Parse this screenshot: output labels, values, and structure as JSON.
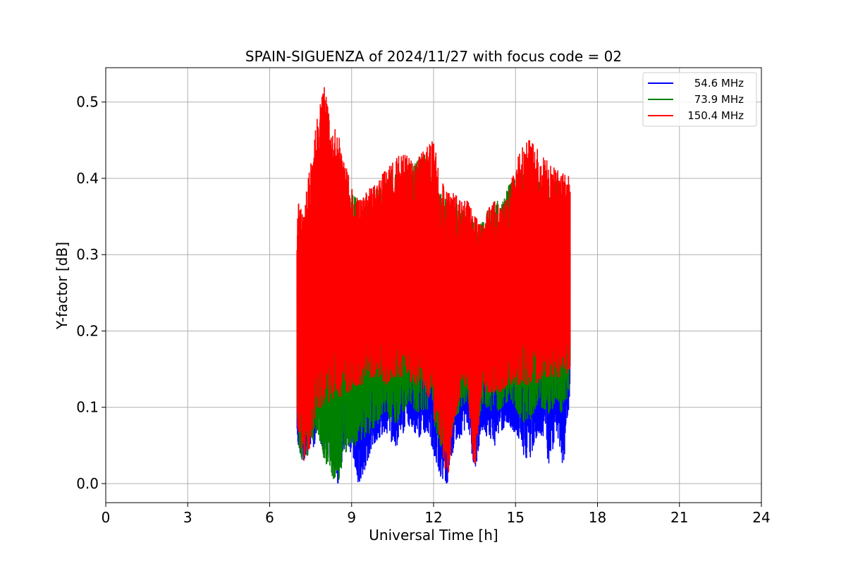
{
  "chart_data": {
    "type": "line",
    "title": "SPAIN-SIGUENZA of 2024/11/27 with focus code = 02",
    "xlabel": "Universal Time [h]",
    "ylabel": "Y-factor [dB]",
    "xlim": [
      0,
      24
    ],
    "ylim": [
      -0.025,
      0.545
    ],
    "xticks": [
      0,
      3,
      6,
      9,
      12,
      15,
      18,
      21,
      24
    ],
    "xtick_labels": [
      "0",
      "3",
      "6",
      "9",
      "12",
      "15",
      "18",
      "21",
      "24"
    ],
    "yticks": [
      0.0,
      0.1,
      0.2,
      0.3,
      0.4,
      0.5
    ],
    "ytick_labels": [
      "0.0",
      "0.1",
      "0.2",
      "0.3",
      "0.4",
      "0.5"
    ],
    "grid": true,
    "legend_position": "top-right",
    "series": [
      {
        "name": "54.6 MHz",
        "color": "#0000ff",
        "x": [
          7.0,
          7.25,
          7.5,
          7.75,
          8.0,
          8.25,
          8.5,
          8.75,
          9.0,
          9.25,
          9.5,
          9.75,
          10.0,
          10.25,
          10.5,
          10.75,
          11.0,
          11.25,
          11.5,
          11.75,
          12.0,
          12.25,
          12.5,
          12.75,
          13.0,
          13.25,
          13.5,
          13.75,
          14.0,
          14.25,
          14.5,
          14.75,
          15.0,
          15.25,
          15.5,
          15.75,
          16.0,
          16.25,
          16.5,
          16.75,
          17.0
        ],
        "lower": [
          0.05,
          0.03,
          0.04,
          0.06,
          0.04,
          0.03,
          0.0,
          0.05,
          0.04,
          0.0,
          0.02,
          0.05,
          0.06,
          0.07,
          0.05,
          0.05,
          0.08,
          0.07,
          0.06,
          0.07,
          0.04,
          0.01,
          0.0,
          0.05,
          0.06,
          0.08,
          0.01,
          0.07,
          0.06,
          0.05,
          0.07,
          0.08,
          0.06,
          0.04,
          0.03,
          0.06,
          0.06,
          0.02,
          0.07,
          0.02,
          0.12
        ],
        "upper": [
          0.28,
          0.3,
          0.31,
          0.3,
          0.33,
          0.32,
          0.3,
          0.3,
          0.31,
          0.32,
          0.3,
          0.31,
          0.32,
          0.32,
          0.33,
          0.33,
          0.33,
          0.32,
          0.32,
          0.33,
          0.31,
          0.3,
          0.3,
          0.31,
          0.3,
          0.3,
          0.3,
          0.29,
          0.28,
          0.3,
          0.3,
          0.31,
          0.32,
          0.32,
          0.33,
          0.33,
          0.32,
          0.32,
          0.32,
          0.32,
          0.3
        ]
      },
      {
        "name": "73.9 MHz",
        "color": "#008000",
        "x": [
          7.0,
          7.25,
          7.5,
          7.75,
          8.0,
          8.25,
          8.5,
          8.75,
          9.0,
          9.25,
          9.5,
          9.75,
          10.0,
          10.25,
          10.5,
          10.75,
          11.0,
          11.25,
          11.5,
          11.75,
          12.0,
          12.25,
          12.5,
          12.75,
          13.0,
          13.25,
          13.5,
          13.75,
          14.0,
          14.25,
          14.5,
          14.75,
          15.0,
          15.25,
          15.5,
          15.75,
          16.0,
          16.25,
          16.5,
          16.75,
          17.0
        ],
        "lower": [
          0.06,
          0.02,
          0.05,
          0.07,
          0.03,
          0.01,
          0.0,
          0.04,
          0.05,
          0.05,
          0.06,
          0.07,
          0.08,
          0.09,
          0.08,
          0.08,
          0.1,
          0.1,
          0.09,
          0.1,
          0.08,
          0.05,
          0.04,
          0.08,
          0.1,
          0.11,
          0.06,
          0.1,
          0.1,
          0.09,
          0.1,
          0.11,
          0.1,
          0.08,
          0.08,
          0.1,
          0.1,
          0.09,
          0.11,
          0.08,
          0.13
        ],
        "upper": [
          0.3,
          0.33,
          0.35,
          0.35,
          0.38,
          0.37,
          0.35,
          0.36,
          0.38,
          0.37,
          0.36,
          0.38,
          0.39,
          0.4,
          0.41,
          0.41,
          0.42,
          0.42,
          0.43,
          0.43,
          0.4,
          0.38,
          0.37,
          0.37,
          0.36,
          0.35,
          0.34,
          0.34,
          0.36,
          0.37,
          0.37,
          0.39,
          0.4,
          0.41,
          0.4,
          0.4,
          0.39,
          0.39,
          0.4,
          0.39,
          0.38
        ]
      },
      {
        "name": "150.4 MHz",
        "color": "#ff0000",
        "x": [
          7.0,
          7.25,
          7.5,
          7.75,
          8.0,
          8.25,
          8.5,
          8.75,
          9.0,
          9.25,
          9.5,
          9.75,
          10.0,
          10.25,
          10.5,
          10.75,
          11.0,
          11.25,
          11.5,
          11.75,
          12.0,
          12.25,
          12.5,
          12.75,
          13.0,
          13.25,
          13.5,
          13.75,
          14.0,
          14.25,
          14.5,
          14.75,
          15.0,
          15.25,
          15.5,
          15.75,
          16.0,
          16.25,
          16.5,
          16.75,
          17.0
        ],
        "lower": [
          0.08,
          0.03,
          0.05,
          0.1,
          0.1,
          0.11,
          0.11,
          0.12,
          0.12,
          0.13,
          0.13,
          0.14,
          0.14,
          0.13,
          0.14,
          0.14,
          0.14,
          0.13,
          0.13,
          0.12,
          0.09,
          0.06,
          0.0,
          0.08,
          0.12,
          0.13,
          0.0,
          0.12,
          0.12,
          0.12,
          0.12,
          0.13,
          0.13,
          0.13,
          0.13,
          0.13,
          0.14,
          0.14,
          0.14,
          0.14,
          0.15
        ],
        "upper": [
          0.37,
          0.36,
          0.42,
          0.48,
          0.52,
          0.47,
          0.46,
          0.42,
          0.39,
          0.37,
          0.38,
          0.39,
          0.4,
          0.41,
          0.42,
          0.43,
          0.43,
          0.42,
          0.43,
          0.44,
          0.45,
          0.4,
          0.38,
          0.38,
          0.37,
          0.37,
          0.35,
          0.34,
          0.36,
          0.37,
          0.36,
          0.38,
          0.42,
          0.44,
          0.45,
          0.44,
          0.43,
          0.42,
          0.41,
          0.41,
          0.4
        ]
      }
    ]
  }
}
